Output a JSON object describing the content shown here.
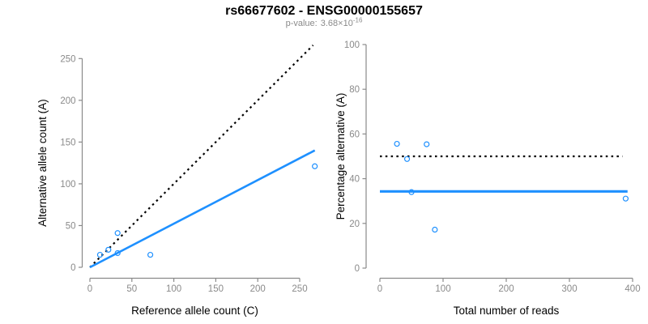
{
  "header": {
    "pvalue": {
      "label": "p-value:",
      "coefficient": "3.68",
      "multiplier": "×10",
      "exponent": "-16"
    }
  },
  "chart_data": {
    "type": "scatter",
    "title": "rs66677602 - ENSG00000155657",
    "subtitle_pvalue": "3.68e-16",
    "point_color": "#1E90FF",
    "axis_color": "#8a8a8a",
    "label_color": "#000000",
    "legend": "none",
    "panels": [
      {
        "name": "allele-counts-scatter",
        "xlabel": "Reference allele count (C)",
        "ylabel": "Alternative allele count (A)",
        "xticks": [
          0,
          50,
          100,
          150,
          200,
          250
        ],
        "yticks": [
          0,
          50,
          100,
          150,
          200,
          250
        ],
        "xlim": [
          0,
          268
        ],
        "ylim": [
          0,
          266
        ],
        "grid": false,
        "points": [
          [
            12,
            15
          ],
          [
            22,
            21
          ],
          [
            33,
            17
          ],
          [
            33,
            41
          ],
          [
            72,
            15
          ],
          [
            268,
            121
          ]
        ],
        "lines": [
          {
            "name": "identity-line",
            "style": "dotted",
            "color": "#000000",
            "width": 2.2,
            "x": [
              0,
              266
            ],
            "y": [
              0,
              266
            ]
          },
          {
            "name": "regression-line",
            "style": "solid",
            "color": "#1E90FF",
            "width": 2.6,
            "x": [
              0,
              268
            ],
            "y": [
              0,
              140
            ]
          }
        ]
      },
      {
        "name": "percentage-vs-depth-scatter",
        "xlabel": "Total number of reads",
        "ylabel": "Percentage alternative (A)",
        "xticks": [
          0,
          100,
          200,
          300,
          400
        ],
        "yticks": [
          0,
          20,
          40,
          60,
          80,
          100
        ],
        "xlim": [
          0,
          397
        ],
        "ylim": [
          0,
          100
        ],
        "grid": false,
        "points": [
          [
            27,
            55.6
          ],
          [
            43,
            48.8
          ],
          [
            50,
            34
          ],
          [
            74,
            55.4
          ],
          [
            87,
            17.2
          ],
          [
            389,
            31.1
          ]
        ],
        "lines": [
          {
            "name": "null-50pct-line",
            "style": "dotted",
            "color": "#000000",
            "width": 2.2,
            "x": [
              0,
              384
            ],
            "y": [
              50,
              50
            ]
          },
          {
            "name": "mean-percentage-line",
            "style": "solid",
            "color": "#1E90FF",
            "width": 3.2,
            "x": [
              0,
              392
            ],
            "y": [
              34.3,
              34.3
            ]
          }
        ]
      }
    ]
  }
}
